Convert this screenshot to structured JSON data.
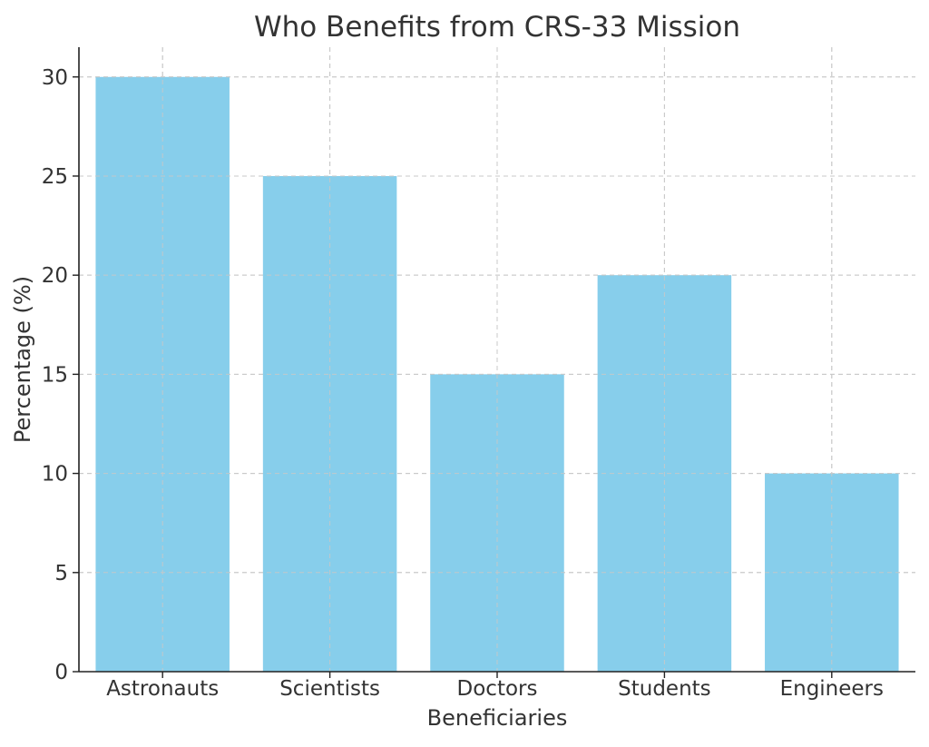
{
  "chart_data": {
    "type": "bar",
    "title": "Who Benefits from CRS-33 Mission",
    "xlabel": "Beneficiaries",
    "ylabel": "Percentage (%)",
    "categories": [
      "Astronauts",
      "Scientists",
      "Doctors",
      "Students",
      "Engineers"
    ],
    "values": [
      30,
      25,
      15,
      20,
      10
    ],
    "ylim": [
      0,
      31.5
    ],
    "yticks": [
      0,
      5,
      10,
      15,
      20,
      25,
      30
    ],
    "grid": true,
    "bar_color": "#87CEEB",
    "grid_color": "#c8c8c8",
    "axis_color": "#222222",
    "text_color": "#333333"
  }
}
